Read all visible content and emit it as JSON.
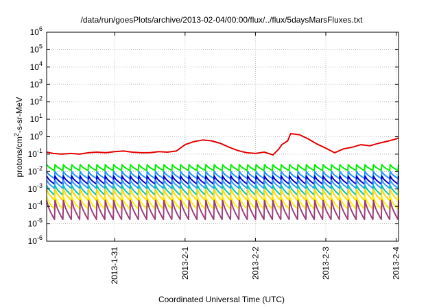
{
  "chart_data": {
    "type": "line",
    "title": "/data/run/goesPlots/archive/2013-02-04/00:00/flux/../flux/5daysMarsFluxes.txt",
    "xlabel": "Coordinated Universal Time (UTC)",
    "ylabel": {
      "prefix": "protons/cm",
      "sup": "2",
      "suffix": "-s-sr-MeV"
    },
    "y_scale": "log",
    "ylim": [
      1e-06,
      1000000.0
    ],
    "y_ticks": [
      {
        "value": 1e-06,
        "base": "10",
        "exp": "-6"
      },
      {
        "value": 1e-05,
        "base": "10",
        "exp": "-5"
      },
      {
        "value": 0.0001,
        "base": "10",
        "exp": "-4"
      },
      {
        "value": 0.001,
        "base": "10",
        "exp": "-3"
      },
      {
        "value": 0.01,
        "base": "10",
        "exp": "-2"
      },
      {
        "value": 0.1,
        "base": "10",
        "exp": "-1"
      },
      {
        "value": 1.0,
        "base": "10",
        "exp": "0"
      },
      {
        "value": 10.0,
        "base": "10",
        "exp": "1"
      },
      {
        "value": 100.0,
        "base": "10",
        "exp": "2"
      },
      {
        "value": 1000.0,
        "base": "10",
        "exp": "3"
      },
      {
        "value": 10000.0,
        "base": "10",
        "exp": "4"
      },
      {
        "value": 100000.0,
        "base": "10",
        "exp": "5"
      },
      {
        "value": 1000000.0,
        "base": "10",
        "exp": "6"
      }
    ],
    "xlim": [
      "2013-01-30T00:48",
      "2013-02-04T00:48"
    ],
    "x_ticks": [
      {
        "value": "2013-01-31T00:00",
        "label": "2013-1-31"
      },
      {
        "value": "2013-02-01T00:00",
        "label": "2013-2-1"
      },
      {
        "value": "2013-02-02T00:00",
        "label": "2013-2-2"
      },
      {
        "value": "2013-02-03T00:00",
        "label": "2013-2-3"
      },
      {
        "value": "2013-02-04T00:00",
        "label": "2013-2-4"
      }
    ],
    "grid": true,
    "legend": "none",
    "series": [
      {
        "color": "#e60000",
        "style": "smooth",
        "points": [
          [
            "2013-01-30T00:48",
            0.13
          ],
          [
            "2013-01-30T03:00",
            0.11
          ],
          [
            "2013-01-30T06:00",
            0.1
          ],
          [
            "2013-01-30T09:00",
            0.11
          ],
          [
            "2013-01-30T12:00",
            0.1
          ],
          [
            "2013-01-30T15:00",
            0.12
          ],
          [
            "2013-01-30T18:00",
            0.13
          ],
          [
            "2013-01-30T21:00",
            0.12
          ],
          [
            "2013-01-31T00:00",
            0.14
          ],
          [
            "2013-01-31T03:00",
            0.15
          ],
          [
            "2013-01-31T06:00",
            0.13
          ],
          [
            "2013-01-31T09:00",
            0.12
          ],
          [
            "2013-01-31T12:00",
            0.12
          ],
          [
            "2013-01-31T15:00",
            0.14
          ],
          [
            "2013-01-31T18:00",
            0.13
          ],
          [
            "2013-01-31T21:00",
            0.15
          ],
          [
            "2013-02-01T00:00",
            0.35
          ],
          [
            "2013-02-01T03:00",
            0.52
          ],
          [
            "2013-02-01T06:00",
            0.65
          ],
          [
            "2013-02-01T09:00",
            0.58
          ],
          [
            "2013-02-01T12:00",
            0.42
          ],
          [
            "2013-02-01T15:00",
            0.25
          ],
          [
            "2013-02-01T18:00",
            0.16
          ],
          [
            "2013-02-01T21:00",
            0.12
          ],
          [
            "2013-02-02T00:00",
            0.11
          ],
          [
            "2013-02-02T03:00",
            0.13
          ],
          [
            "2013-02-02T06:00",
            0.09
          ],
          [
            "2013-02-02T08:00",
            0.2
          ],
          [
            "2013-02-02T09:00",
            0.35
          ],
          [
            "2013-02-02T11:00",
            0.58
          ],
          [
            "2013-02-02T12:00",
            1.5
          ],
          [
            "2013-02-02T15:00",
            1.3
          ],
          [
            "2013-02-02T18:00",
            0.75
          ],
          [
            "2013-02-02T21:00",
            0.38
          ],
          [
            "2013-02-03T00:00",
            0.22
          ],
          [
            "2013-02-03T03:00",
            0.12
          ],
          [
            "2013-02-03T06:00",
            0.2
          ],
          [
            "2013-02-03T09:00",
            0.25
          ],
          [
            "2013-02-03T12:00",
            0.35
          ],
          [
            "2013-02-03T15:00",
            0.3
          ],
          [
            "2013-02-03T18:00",
            0.42
          ],
          [
            "2013-02-03T21:00",
            0.55
          ],
          [
            "2013-02-04T00:00",
            0.75
          ],
          [
            "2013-02-04T00:48",
            0.85
          ]
        ]
      },
      {
        "color": "#00ee00",
        "style": "sawtooth",
        "peak": 0.025,
        "trough": 0.0115
      },
      {
        "color": "#1e90ff",
        "style": "sawtooth",
        "peak": 0.01,
        "trough": 0.004
      },
      {
        "color": "#0000cc",
        "style": "sawtooth",
        "peak": 0.0055,
        "trough": 0.0019
      },
      {
        "color": "#3399ff",
        "style": "sawtooth",
        "peak": 0.0032,
        "trough": 0.0011
      },
      {
        "color": "#00c8b4",
        "style": "sawtooth",
        "peak": 0.0016,
        "trough": 0.00045
      },
      {
        "color": "#ffd700",
        "style": "sawtooth",
        "peak": 0.00095,
        "trough": 0.00022
      },
      {
        "color": "#ffee00",
        "style": "sawtooth",
        "peak": 0.00035,
        "trough": 7e-05
      },
      {
        "color": "#9b3f7c",
        "style": "sawtooth",
        "peak": 0.00022,
        "trough": 1.8e-05
      }
    ],
    "sawtooth_cycles": 42
  }
}
